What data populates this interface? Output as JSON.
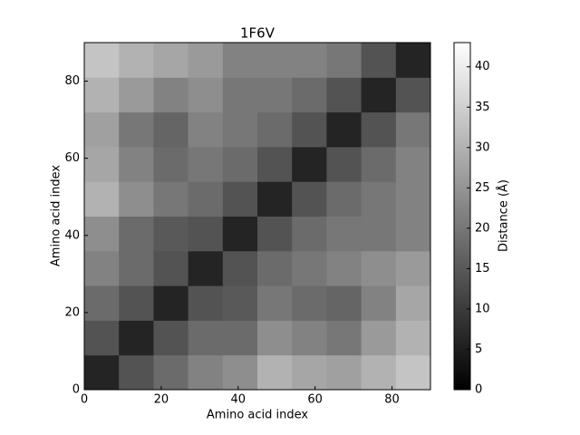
{
  "chart_data": {
    "type": "heatmap",
    "title": "1F6V",
    "x_label": "Amino acid index",
    "y_label": "Amino acid index",
    "colorbar_label": "Distance (Å)",
    "colormap": "gray",
    "x_bins": [
      0,
      9,
      18,
      27,
      36,
      45,
      54,
      63,
      72,
      81,
      90
    ],
    "y_bins": [
      0,
      9,
      18,
      27,
      36,
      45,
      54,
      63,
      72,
      81,
      90
    ],
    "values": [
      [
        6,
        14,
        18,
        22,
        24,
        30,
        28,
        27,
        30,
        33
      ],
      [
        14,
        6,
        14,
        18,
        18,
        24,
        22,
        20,
        26,
        30
      ],
      [
        18,
        14,
        6,
        14,
        15,
        20,
        18,
        17,
        22,
        28
      ],
      [
        22,
        18,
        14,
        6,
        14,
        18,
        20,
        22,
        24,
        26
      ],
      [
        24,
        18,
        15,
        14,
        6,
        14,
        18,
        20,
        20,
        22
      ],
      [
        30,
        24,
        20,
        18,
        14,
        6,
        14,
        18,
        20,
        22
      ],
      [
        28,
        22,
        18,
        20,
        18,
        14,
        6,
        14,
        18,
        22
      ],
      [
        27,
        20,
        17,
        22,
        20,
        18,
        14,
        6,
        14,
        20
      ],
      [
        30,
        26,
        22,
        24,
        20,
        20,
        18,
        14,
        6,
        14
      ],
      [
        33,
        30,
        28,
        26,
        22,
        22,
        22,
        20,
        14,
        6
      ]
    ],
    "xlim": [
      0,
      90
    ],
    "ylim": [
      0,
      90
    ],
    "xticks": [
      0,
      20,
      40,
      60,
      80
    ],
    "yticks": [
      0,
      20,
      40,
      60,
      80
    ],
    "zlim": [
      0,
      43
    ],
    "zticks": [
      0,
      5,
      10,
      15,
      20,
      25,
      30,
      35,
      40
    ]
  }
}
